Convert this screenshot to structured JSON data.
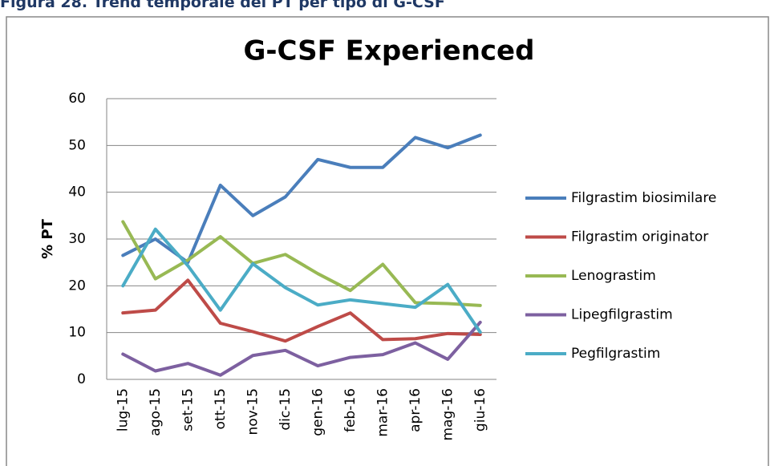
{
  "heading": "Figura 28. Trend temporale dei PT per tipo di G-CSF",
  "chart_data": {
    "type": "line",
    "title": "G-CSF Experienced",
    "y_label": "% PT",
    "categories": [
      "lug-15",
      "ago-15",
      "set-15",
      "ott-15",
      "nov-15",
      "dic-15",
      "gen-16",
      "feb-16",
      "mar-16",
      "apr-16",
      "mag-16",
      "giu-16"
    ],
    "series": [
      {
        "name": "Filgrastim biosimilare",
        "color": "#4a7ebb",
        "values": [
          26.5,
          30,
          25,
          41.5,
          35,
          39,
          47,
          45.3,
          45.3,
          51.7,
          49.5,
          52.2
        ]
      },
      {
        "name": "Filgrastim  originator",
        "color": "#be4b48",
        "values": [
          14.2,
          14.8,
          21.2,
          12,
          10.2,
          8.2,
          11.3,
          14.2,
          8.5,
          8.7,
          9.8,
          9.6
        ]
      },
      {
        "name": "Lenograstim",
        "color": "#98b954",
        "values": [
          33.7,
          21.5,
          25.5,
          30.5,
          24.8,
          26.7,
          22.6,
          19,
          24.6,
          16.4,
          16.2,
          15.8
        ]
      },
      {
        "name": "Lipegfilgrastim",
        "color": "#7d60a0",
        "values": [
          5.4,
          1.8,
          3.4,
          0.9,
          5.1,
          6.2,
          2.9,
          4.7,
          5.3,
          7.8,
          4.3,
          12.2
        ]
      },
      {
        "name": "Pegfilgrastim",
        "color": "#4bacc6",
        "values": [
          20,
          32.1,
          24.3,
          14.8,
          24.7,
          19.6,
          15.9,
          17,
          16.2,
          15.4,
          20.3,
          10.1
        ]
      }
    ],
    "ylim": [
      0,
      60
    ],
    "yticks": [
      0,
      10,
      20,
      30,
      40,
      50,
      60
    ],
    "grid": true,
    "legend": "right"
  }
}
